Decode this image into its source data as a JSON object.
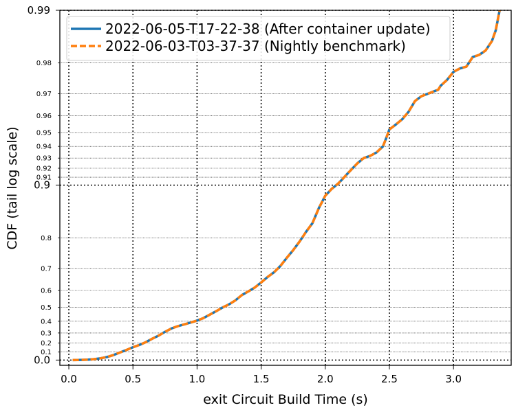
{
  "chart_data": {
    "type": "line",
    "title": "",
    "xlabel": "exit Circuit Build Time (s)",
    "ylabel": "CDF (tail log scale)",
    "xlim": [
      -0.07,
      3.45
    ],
    "x_ticks": [
      "0.0",
      "0.5",
      "1.0",
      "1.5",
      "2.0",
      "2.5",
      "3.0"
    ],
    "y_scale": "tail-log",
    "y_major_ticks": [
      {
        "value": 0.0,
        "label": "0.0"
      },
      {
        "value": 0.9,
        "label": "0.9"
      },
      {
        "value": 0.99,
        "label": "0.99"
      }
    ],
    "y_minor_ticks": [
      {
        "value": 0.1,
        "label": "0.1"
      },
      {
        "value": 0.2,
        "label": "0.2"
      },
      {
        "value": 0.3,
        "label": "0.3"
      },
      {
        "value": 0.4,
        "label": "0.4"
      },
      {
        "value": 0.5,
        "label": "0.5"
      },
      {
        "value": 0.6,
        "label": "0.6"
      },
      {
        "value": 0.7,
        "label": "0.7"
      },
      {
        "value": 0.8,
        "label": "0.8"
      },
      {
        "value": 0.91,
        "label": "0.91"
      },
      {
        "value": 0.92,
        "label": "0.92"
      },
      {
        "value": 0.93,
        "label": "0.93"
      },
      {
        "value": 0.94,
        "label": "0.94"
      },
      {
        "value": 0.95,
        "label": "0.95"
      },
      {
        "value": 0.96,
        "label": "0.96"
      },
      {
        "value": 0.97,
        "label": "0.97"
      },
      {
        "value": 0.98,
        "label": "0.98"
      }
    ],
    "grid": true,
    "legend_position": "top-left",
    "series": [
      {
        "name": "2022-06-05-T17-22-38 (After container update)",
        "color": "#1f77b4",
        "style": "solid",
        "x": [
          0.03,
          0.1,
          0.15,
          0.2,
          0.25,
          0.3,
          0.35,
          0.4,
          0.45,
          0.5,
          0.55,
          0.6,
          0.65,
          0.7,
          0.75,
          0.8,
          0.85,
          0.9,
          0.95,
          1.0,
          1.05,
          1.1,
          1.15,
          1.2,
          1.25,
          1.3,
          1.35,
          1.4,
          1.45,
          1.5,
          1.55,
          1.6,
          1.65,
          1.7,
          1.75,
          1.8,
          1.85,
          1.9,
          1.95,
          2.0,
          2.05,
          2.1,
          2.13,
          2.16,
          2.2,
          2.25,
          2.3,
          2.35,
          2.4,
          2.45,
          2.47,
          2.5,
          2.55,
          2.6,
          2.65,
          2.7,
          2.75,
          2.8,
          2.85,
          2.88,
          2.9,
          2.95,
          3.0,
          3.05,
          3.1,
          3.15,
          3.2,
          3.25,
          3.3,
          3.33,
          3.36
        ],
        "y": [
          0.0,
          0.002,
          0.005,
          0.012,
          0.024,
          0.04,
          0.065,
          0.095,
          0.125,
          0.155,
          0.18,
          0.21,
          0.245,
          0.275,
          0.31,
          0.34,
          0.36,
          0.375,
          0.39,
          0.405,
          0.425,
          0.45,
          0.475,
          0.5,
          0.52,
          0.545,
          0.575,
          0.595,
          0.615,
          0.64,
          0.665,
          0.685,
          0.71,
          0.74,
          0.765,
          0.79,
          0.815,
          0.835,
          0.865,
          0.885,
          0.895,
          0.902,
          0.907,
          0.912,
          0.918,
          0.925,
          0.93,
          0.932,
          0.935,
          0.94,
          0.945,
          0.952,
          0.955,
          0.958,
          0.962,
          0.967,
          0.969,
          0.97,
          0.971,
          0.9715,
          0.973,
          0.975,
          0.9775,
          0.9785,
          0.979,
          0.9815,
          0.982,
          0.983,
          0.985,
          0.987,
          0.99
        ]
      },
      {
        "name": "2022-06-03-T03-37-37 (Nightly benchmark)",
        "color": "#ff7f0e",
        "style": "dashed",
        "x": [
          0.03,
          0.1,
          0.15,
          0.2,
          0.25,
          0.3,
          0.35,
          0.4,
          0.45,
          0.5,
          0.55,
          0.6,
          0.65,
          0.7,
          0.75,
          0.8,
          0.85,
          0.9,
          0.95,
          1.0,
          1.05,
          1.1,
          1.15,
          1.2,
          1.25,
          1.3,
          1.35,
          1.4,
          1.45,
          1.5,
          1.55,
          1.6,
          1.65,
          1.7,
          1.75,
          1.8,
          1.85,
          1.9,
          1.95,
          2.0,
          2.05,
          2.1,
          2.13,
          2.16,
          2.2,
          2.25,
          2.3,
          2.35,
          2.4,
          2.45,
          2.47,
          2.5,
          2.55,
          2.6,
          2.65,
          2.7,
          2.75,
          2.8,
          2.85,
          2.88,
          2.9,
          2.95,
          3.0,
          3.05,
          3.1,
          3.15,
          3.2,
          3.25,
          3.3,
          3.33,
          3.36
        ],
        "y": [
          0.0,
          0.002,
          0.005,
          0.012,
          0.024,
          0.04,
          0.065,
          0.095,
          0.125,
          0.155,
          0.18,
          0.21,
          0.245,
          0.275,
          0.31,
          0.34,
          0.36,
          0.375,
          0.39,
          0.405,
          0.425,
          0.45,
          0.475,
          0.5,
          0.52,
          0.545,
          0.575,
          0.595,
          0.615,
          0.64,
          0.665,
          0.685,
          0.71,
          0.74,
          0.765,
          0.79,
          0.815,
          0.835,
          0.865,
          0.885,
          0.895,
          0.902,
          0.907,
          0.912,
          0.918,
          0.925,
          0.93,
          0.932,
          0.935,
          0.94,
          0.945,
          0.952,
          0.955,
          0.958,
          0.962,
          0.967,
          0.969,
          0.97,
          0.971,
          0.9715,
          0.973,
          0.975,
          0.9775,
          0.9785,
          0.979,
          0.9815,
          0.982,
          0.983,
          0.985,
          0.987,
          0.99
        ]
      }
    ]
  }
}
